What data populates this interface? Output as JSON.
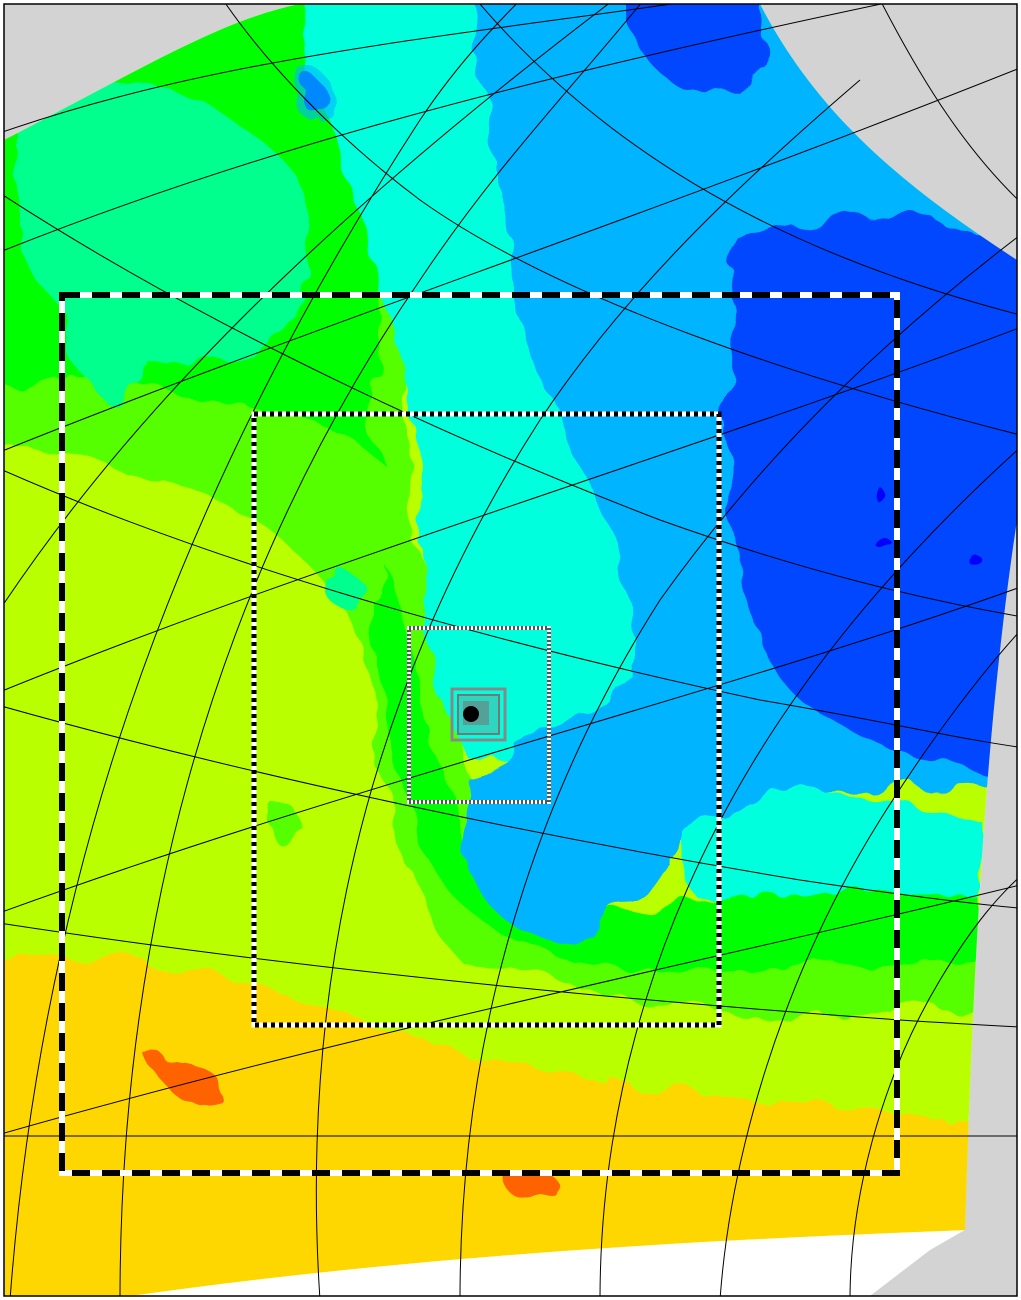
{
  "map": {
    "colors": {
      "background": "#ffffff",
      "no_data": "#d3d3d3",
      "graticule": "#000000",
      "elevation_scale": [
        "#0000ff",
        "#0047ff",
        "#00b4ff",
        "#00ffdc",
        "#00ff8c",
        "#00ff00",
        "#57ff00",
        "#b9ff00",
        "#ffd700",
        "#ff6400"
      ]
    },
    "landing_site_marker": {
      "color": "#000000",
      "shape": "filled-circle"
    },
    "boxes": [
      {
        "name": "outer-region-box",
        "style": "dashed-black-white"
      },
      {
        "name": "middle-region-box",
        "style": "dotted-black-white"
      },
      {
        "name": "inner-region-box",
        "style": "fine-dotted-gray"
      },
      {
        "name": "innermost-region-box",
        "style": "solid-gray"
      }
    ]
  }
}
